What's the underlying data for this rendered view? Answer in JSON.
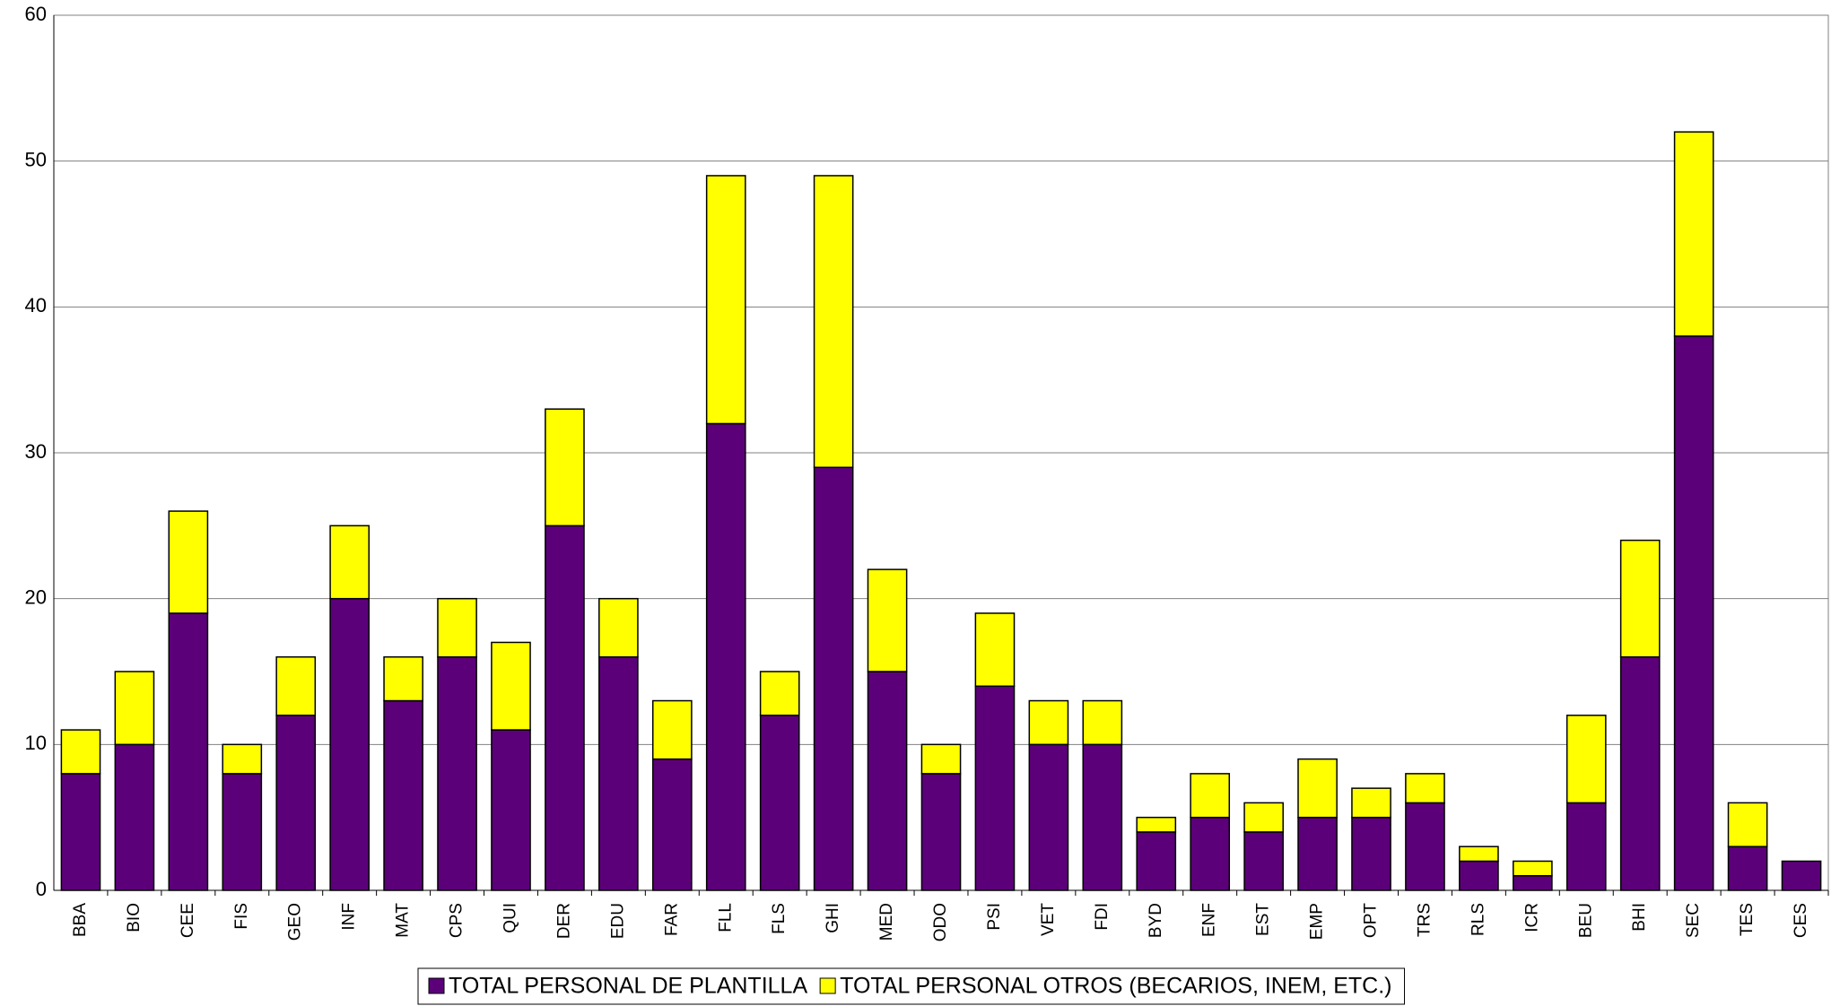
{
  "chart_data": {
    "type": "bar",
    "stacked": true,
    "categories": [
      "BBA",
      "BIO",
      "CEE",
      "FIS",
      "GEO",
      "INF",
      "MAT",
      "CPS",
      "QUI",
      "DER",
      "EDU",
      "FAR",
      "FLL",
      "FLS",
      "GHI",
      "MED",
      "ODO",
      "PSI",
      "VET",
      "FDI",
      "BYD",
      "ENF",
      "EST",
      "EMP",
      "OPT",
      "TRS",
      "RLS",
      "ICR",
      "BEU",
      "BHI",
      "SEC",
      "TES",
      "CES"
    ],
    "series": [
      {
        "name": "TOTAL PERSONAL DE PLANTILLA",
        "color": "#5c007a",
        "values": [
          8,
          10,
          19,
          8,
          12,
          20,
          13,
          16,
          11,
          25,
          16,
          9,
          32,
          12,
          29,
          15,
          8,
          14,
          10,
          10,
          4,
          5,
          4,
          5,
          5,
          6,
          2,
          1,
          6,
          16,
          38,
          3,
          2
        ]
      },
      {
        "name": "TOTAL PERSONAL OTROS (BECARIOS, INEM, ETC.)",
        "color": "#ffff00",
        "values": [
          3,
          5,
          7,
          2,
          4,
          5,
          3,
          4,
          6,
          8,
          4,
          4,
          17,
          3,
          20,
          7,
          2,
          5,
          3,
          3,
          1,
          3,
          2,
          4,
          2,
          2,
          1,
          1,
          6,
          8,
          14,
          3,
          0
        ]
      }
    ],
    "ylim": [
      0,
      60
    ],
    "yticks": [
      0,
      10,
      20,
      30,
      40,
      50,
      60
    ],
    "grid": true,
    "legend": "bottom"
  }
}
